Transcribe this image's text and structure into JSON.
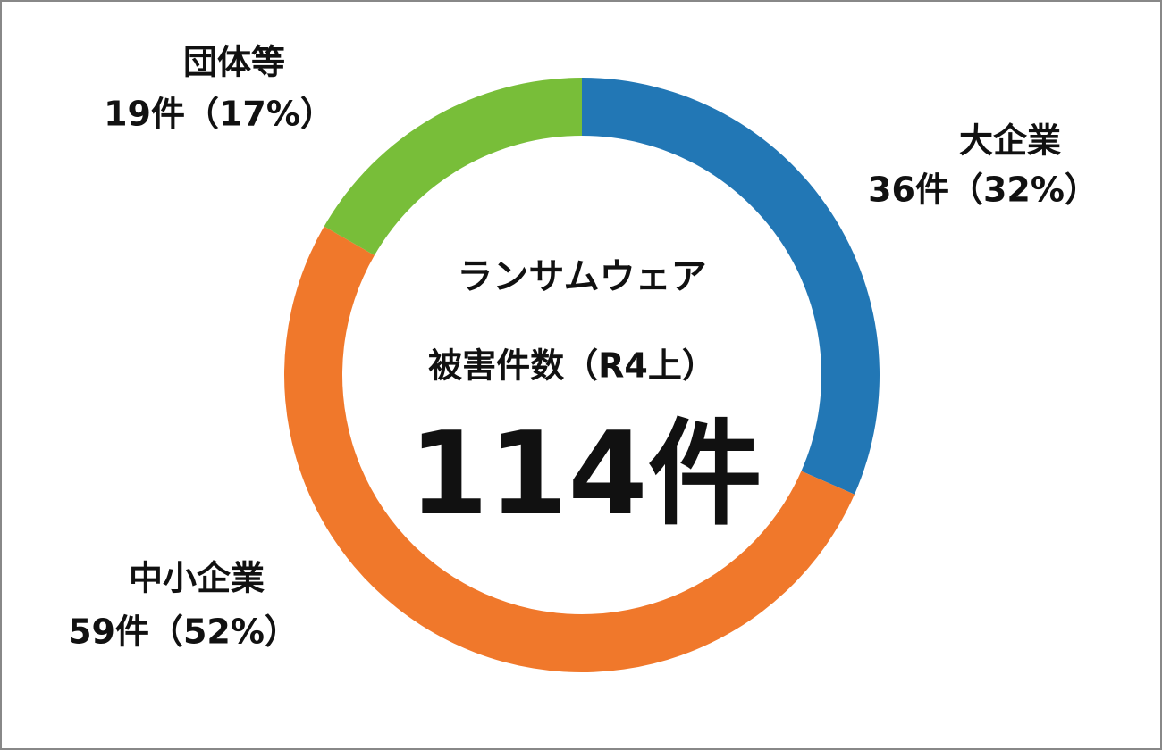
{
  "chart_data": {
    "type": "donut",
    "title": "ランサムウェア",
    "subtitle": "被害件数（R4上）",
    "total_label": "114件",
    "categories": [
      "大企業",
      "中小企業",
      "団体等"
    ],
    "values": [
      36,
      59,
      19
    ],
    "value_labels": [
      "36件（32%）",
      "59件（52%）",
      "19件（17%）"
    ],
    "colors": [
      "#2277b5",
      "#f0782b",
      "#78be39"
    ]
  }
}
